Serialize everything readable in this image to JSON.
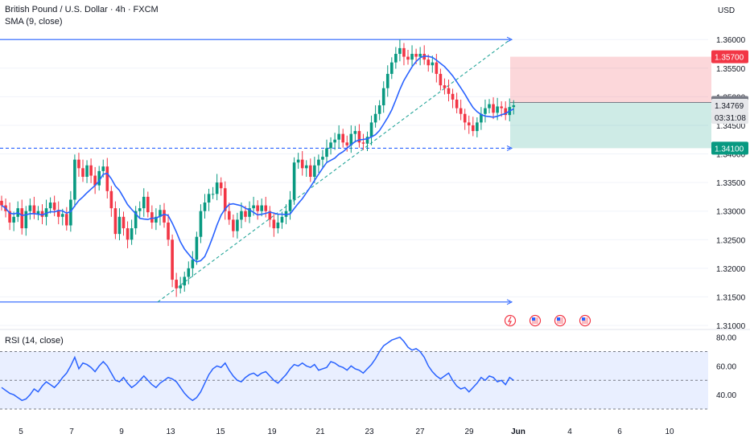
{
  "header": {
    "title": "British Pound / U.S. Dollar · 4h · FXCM",
    "sma_label": "SMA (9, close)",
    "currency": "USD",
    "rsi_label": "RSI (14, close)"
  },
  "chart_data": [
    {
      "type": "candlestick",
      "symbol": "GBP/USD",
      "timeframe": "4h",
      "ylim": [
        1.31,
        1.362
      ],
      "y_ticks": [
        "1.36000",
        "1.35500",
        "1.35000",
        "1.34500",
        "1.34000",
        "1.33500",
        "1.33000",
        "1.32500",
        "1.32000",
        "1.31500",
        "1.31000"
      ],
      "x_ticks": [
        "5",
        "7",
        "9",
        "13",
        "15",
        "19",
        "21",
        "23",
        "27",
        "29",
        "Jun",
        "4",
        "6",
        "10"
      ],
      "close": [
        1.331,
        1.33,
        1.328,
        1.329,
        1.3305,
        1.327,
        1.33,
        1.331,
        1.3295,
        1.33,
        1.329,
        1.3305,
        1.3315,
        1.3302,
        1.329,
        1.3295,
        1.3275,
        1.332,
        1.339,
        1.3375,
        1.336,
        1.338,
        1.3362,
        1.3345,
        1.337,
        1.3378,
        1.3335,
        1.3305,
        1.326,
        1.329,
        1.327,
        1.325,
        1.327,
        1.33,
        1.3305,
        1.3325,
        1.3298,
        1.328,
        1.329,
        1.3302,
        1.328,
        1.325,
        1.318,
        1.3165,
        1.317,
        1.3185,
        1.32,
        1.3215,
        1.3255,
        1.33,
        1.3315,
        1.333,
        1.333,
        1.335,
        1.334,
        1.33,
        1.3285,
        1.3265,
        1.3285,
        1.33,
        1.329,
        1.3305,
        1.331,
        1.33,
        1.331,
        1.33,
        1.3285,
        1.327,
        1.328,
        1.329,
        1.33,
        1.332,
        1.3385,
        1.339,
        1.3375,
        1.338,
        1.336,
        1.338,
        1.339,
        1.3395,
        1.341,
        1.342,
        1.3425,
        1.3435,
        1.342,
        1.3415,
        1.3435,
        1.344,
        1.342,
        1.3418,
        1.343,
        1.3455,
        1.347,
        1.3485,
        1.3515,
        1.354,
        1.356,
        1.3575,
        1.3585,
        1.357,
        1.3565,
        1.3575,
        1.357,
        1.3575,
        1.3565,
        1.3555,
        1.356,
        1.354,
        1.352,
        1.3515,
        1.3505,
        1.3495,
        1.348,
        1.347,
        1.3455,
        1.345,
        1.344,
        1.3455,
        1.347,
        1.348,
        1.3487,
        1.3472,
        1.3483,
        1.348,
        1.3468,
        1.3482,
        1.3485
      ],
      "sma": {
        "name": "SMA (9, close)",
        "period": 9
      },
      "horizontal_lines": [
        {
          "price": 1.36,
          "style": "solid"
        },
        {
          "price": 1.341,
          "style": "dashed"
        },
        {
          "price": 1.3141,
          "style": "solid"
        }
      ],
      "trendline": {
        "from_price": 1.3141,
        "to_price": 1.36
      },
      "position": {
        "entry": 1.349,
        "stop": 1.357,
        "target": 1.341
      },
      "price_labels": [
        {
          "text": "1.35700",
          "color": "#f23645"
        },
        {
          "text": "1.34900",
          "color": "#787b86"
        },
        {
          "text": "1.34769",
          "color": "#e6e7ea"
        },
        {
          "text": "03:31:08",
          "color": "#e6e7ea"
        },
        {
          "text": "1.34100",
          "color": "#089981"
        }
      ],
      "colors": {
        "up": "#089981",
        "down": "#f23645",
        "sma": "#2962ff",
        "lines": "#2962ff"
      }
    },
    {
      "type": "line",
      "name": "RSI (14, close)",
      "ylim": [
        25,
        82
      ],
      "y_ticks": [
        "80.00",
        "60.00",
        "40.00"
      ],
      "levels": [
        70,
        50,
        30
      ],
      "values": [
        45,
        43,
        41,
        40,
        38,
        36,
        37,
        40,
        44,
        42,
        46,
        49,
        47,
        45,
        48,
        52,
        55,
        60,
        66,
        58,
        62,
        61,
        59,
        56,
        60,
        63,
        60,
        55,
        50,
        49,
        52,
        48,
        45,
        47,
        50,
        53,
        50,
        47,
        45,
        48,
        50,
        52,
        51,
        49,
        45,
        41,
        38,
        36,
        38,
        42,
        48,
        54,
        58,
        60,
        59,
        62,
        57,
        53,
        50,
        49,
        52,
        54,
        55,
        53,
        55,
        56,
        53,
        50,
        48,
        51,
        54,
        58,
        61,
        60,
        62,
        60,
        59,
        61,
        57,
        58,
        59,
        63,
        62,
        60,
        59,
        57,
        60,
        58,
        57,
        55,
        58,
        61,
        65,
        70,
        74,
        76,
        78,
        79,
        80,
        77,
        73,
        71,
        72,
        70,
        66,
        60,
        56,
        53,
        51,
        53,
        55,
        50,
        46,
        44,
        45,
        42,
        45,
        48,
        52,
        50,
        53,
        52,
        49,
        50,
        47,
        52,
        50
      ]
    }
  ]
}
